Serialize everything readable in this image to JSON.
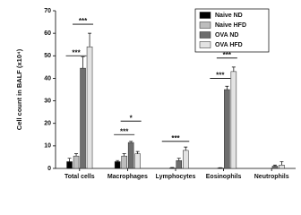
{
  "chart_data": {
    "type": "bar",
    "ylabel": "Cell count in BALF (x10⁴)",
    "categories": [
      "Total cells",
      "Macrophages",
      "Lymphocytes",
      "Eosinophils",
      "Neutrophils"
    ],
    "series": [
      {
        "name": "Naive ND",
        "color": "#000000",
        "values": [
          3,
          3,
          0,
          0,
          0
        ],
        "errors": [
          1.5,
          0.5,
          0,
          0,
          0
        ]
      },
      {
        "name": "Naive HFD",
        "color": "#bdbdbd",
        "values": [
          5.5,
          5.5,
          0.2,
          0.2,
          0
        ],
        "errors": [
          1,
          1,
          0.2,
          0.1,
          0
        ]
      },
      {
        "name": "OVA ND",
        "color": "#6e6e6e",
        "values": [
          44.5,
          11.5,
          3.5,
          35,
          1
        ],
        "errors": [
          5,
          0.5,
          1,
          1.5,
          0.5
        ]
      },
      {
        "name": "OVA HFD",
        "color": "#e3e3e3",
        "values": [
          54,
          6.5,
          8,
          43,
          1.5
        ],
        "errors": [
          6,
          1,
          1.5,
          2,
          1.5
        ]
      }
    ],
    "annotations": [
      "***",
      "***",
      "***",
      "*",
      "***",
      "***",
      "***"
    ],
    "ylim": [
      0,
      70
    ],
    "yticks": [
      0,
      10,
      20,
      30,
      40,
      50,
      60,
      70
    ],
    "legend": "top-right"
  }
}
